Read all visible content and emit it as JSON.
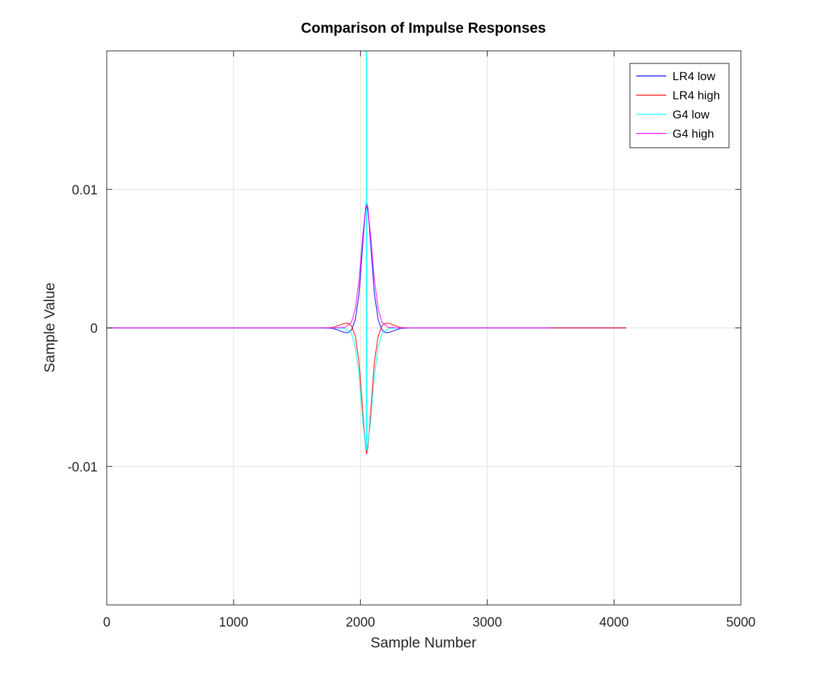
{
  "chart_data": {
    "type": "line",
    "title": "Comparison of Impulse Responses",
    "xlabel": "Sample Number",
    "ylabel": "Sample Value",
    "xlim": [
      0,
      5000
    ],
    "ylim": [
      -0.02,
      0.02
    ],
    "xticks": [
      0,
      1000,
      2000,
      3000,
      4000,
      5000
    ],
    "xtick_labels": [
      "0",
      "1000",
      "2000",
      "3000",
      "4000",
      "5000"
    ],
    "yticks": [
      -0.01,
      0,
      0.01
    ],
    "ytick_labels": [
      "-0.01",
      "0",
      "0.01"
    ],
    "grid": true,
    "legend_position": "top-right",
    "series": [
      {
        "name": "LR4 low",
        "color": "#0000ff",
        "x": [
          0,
          1700,
          1780,
          1830,
          1870,
          1900,
          1930,
          1960,
          1990,
          2020,
          2040,
          2049,
          2060,
          2080,
          2110,
          2140,
          2170,
          2200,
          2230,
          2270,
          2320,
          2400,
          4096
        ],
        "y": [
          0,
          0,
          -3e-05,
          -0.00018,
          -0.00032,
          -0.00035,
          -0.00015,
          0.0006,
          0.0025,
          0.0062,
          0.0086,
          0.0091,
          0.0086,
          0.0062,
          0.0025,
          0.0006,
          -0.00015,
          -0.00035,
          -0.00032,
          -0.00018,
          -3e-05,
          0,
          0
        ]
      },
      {
        "name": "LR4 high",
        "color": "#ff0000",
        "x": [
          0,
          1700,
          1780,
          1830,
          1870,
          1900,
          1930,
          1960,
          1990,
          2020,
          2040,
          2049,
          2060,
          2080,
          2110,
          2140,
          2170,
          2200,
          2230,
          2270,
          2320,
          2400,
          4096
        ],
        "y": [
          0,
          0,
          3e-05,
          0.00018,
          0.00032,
          0.00035,
          0.00015,
          -0.0006,
          -0.0025,
          -0.0062,
          -0.0086,
          -0.0091,
          -0.0086,
          -0.0062,
          -0.0025,
          -0.0006,
          0.00015,
          0.00035,
          0.00032,
          0.00018,
          3e-05,
          0,
          0
        ]
      },
      {
        "name": "G4 low",
        "color": "#00ffff",
        "x": [
          0,
          1800,
          1880,
          1930,
          1960,
          1990,
          2020,
          2040,
          2046,
          2047,
          2048,
          2049,
          2050,
          2051,
          2052,
          2058,
          2080,
          2110,
          2140,
          2170,
          2220,
          2300,
          3500
        ],
        "y": [
          0,
          0,
          -5e-05,
          -0.0004,
          -0.0014,
          -0.0035,
          -0.0068,
          -0.0085,
          -0.0088,
          0.02,
          0.02,
          0.02,
          0.02,
          0.02,
          -0.0088,
          -0.0085,
          -0.0068,
          -0.0035,
          -0.0014,
          -0.0004,
          -5e-05,
          0,
          0
        ]
      },
      {
        "name": "G4 high",
        "color": "#ff00ff",
        "x": [
          0,
          1800,
          1880,
          1930,
          1960,
          1990,
          2020,
          2040,
          2049,
          2058,
          2080,
          2110,
          2140,
          2170,
          2220,
          2300,
          3500
        ],
        "y": [
          0,
          0,
          5e-05,
          0.0004,
          0.0014,
          0.0035,
          0.0068,
          0.0085,
          0.0088,
          0.0085,
          0.0068,
          0.0035,
          0.0014,
          0.0004,
          5e-05,
          0,
          0
        ]
      }
    ]
  }
}
